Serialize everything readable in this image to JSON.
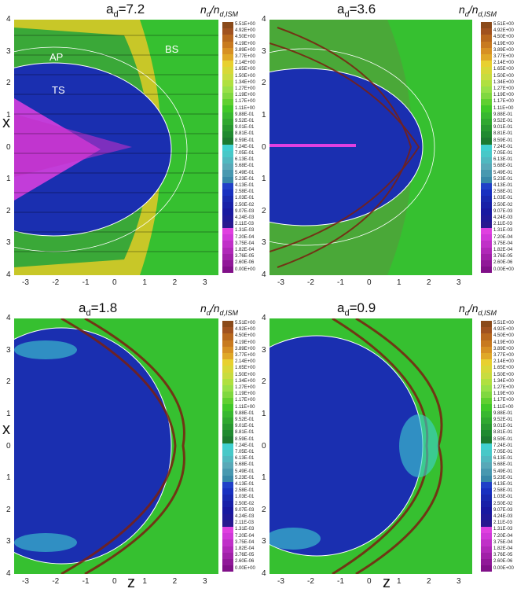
{
  "panels": [
    {
      "title_base": "a",
      "title_sub": "d",
      "title_val": "=7.2"
    },
    {
      "title_base": "a",
      "title_sub": "d",
      "title_val": "=3.6"
    },
    {
      "title_base": "a",
      "title_sub": "d",
      "title_val": "=1.8"
    },
    {
      "title_base": "a",
      "title_sub": "d",
      "title_val": "=0.9"
    }
  ],
  "colorbar": {
    "title_n": "n",
    "title_sub1": "d",
    "title_slash": "/n",
    "title_sub2": "d,ISM",
    "labels": [
      "5.51E+00",
      "4.92E+00",
      "4.50E+00",
      "4.19E+00",
      "3.89E+00",
      "3.77E+00",
      "2.14E+00",
      "1.65E+00",
      "1.50E+00",
      "1.34E+00",
      "1.27E+00",
      "1.19E+00",
      "1.17E+00",
      "1.11E+00",
      "9.88E-01",
      "9.52E-01",
      "9.01E-01",
      "8.81E-01",
      "8.59E-01",
      "7.24E-01",
      "7.05E-01",
      "6.13E-01",
      "5.68E-01",
      "5.49E-01",
      "5.23E-01",
      "4.13E-01",
      "2.58E-01",
      "1.03E-01",
      "2.50E-02",
      "9.07E-03",
      "4.24E-03",
      "2.11E-03",
      "1.31E-03",
      "7.20E-04",
      "3.75E-04",
      "1.82E-04",
      "3.76E-05",
      "2.60E-06",
      "0.00E+00"
    ],
    "colors": [
      "#8a4a1a",
      "#a0521f",
      "#b8681e",
      "#c87a20",
      "#d79024",
      "#e0a828",
      "#e8d030",
      "#d8d838",
      "#c8dc40",
      "#b0e040",
      "#98e048",
      "#80d840",
      "#60d030",
      "#40c828",
      "#38b830",
      "#30a830",
      "#289830",
      "#208a30",
      "#1c7a30",
      "#40d0d0",
      "#48c8c8",
      "#50b8c0",
      "#58a8b8",
      "#4898b0",
      "#3888a8",
      "#2040c8",
      "#1830c0",
      "#1828b0",
      "#1820a8",
      "#1818a0",
      "#201898",
      "#281890",
      "#e040e0",
      "#d038d8",
      "#c030c8",
      "#b028b8",
      "#a020a8",
      "#901898",
      "#801088"
    ]
  },
  "annotations": {
    "ap": "AP",
    "bs": "BS",
    "ts": "TS"
  },
  "axes": {
    "x_label": "x",
    "z_label": "z",
    "x_ticks": [
      "4",
      "3",
      "2",
      "1",
      "0",
      "1",
      "2",
      "3",
      "4"
    ],
    "z_ticks": [
      "-3",
      "-2",
      "-1",
      "0",
      "1",
      "2",
      "3"
    ]
  },
  "colors": {
    "wind": "#36c030",
    "inner": "#1a2fb0",
    "ts_pink": "#e040e0",
    "bs_yellow": "#d8c828"
  }
}
